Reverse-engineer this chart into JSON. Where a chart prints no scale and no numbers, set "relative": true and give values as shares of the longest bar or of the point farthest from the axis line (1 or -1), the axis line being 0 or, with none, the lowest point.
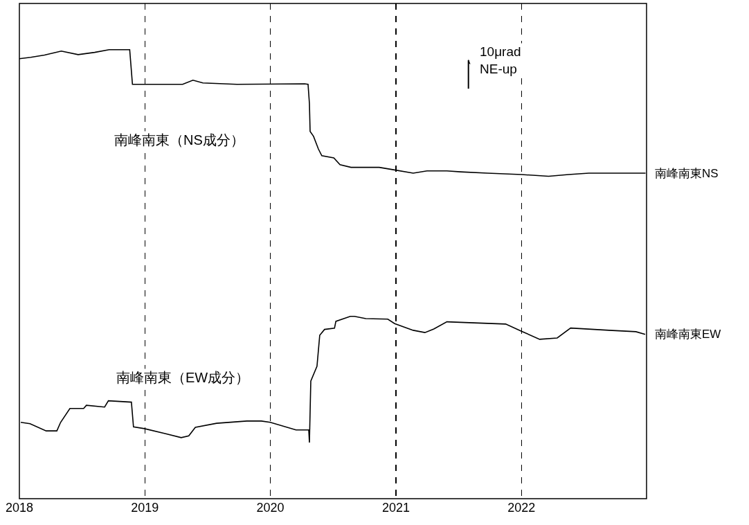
{
  "chart_data": {
    "type": "line",
    "relative": true,
    "grid": "x",
    "legend": false,
    "marker": "none",
    "line_style": "solid",
    "xlim": [
      "2018-01-01",
      "2022-12-31"
    ],
    "xticks": [
      {
        "value": "2018-01-01",
        "label": "2018"
      },
      {
        "value": "2019-01-01",
        "label": "2019"
      },
      {
        "value": "2020-01-01",
        "label": "2020"
      },
      {
        "value": "2021-01-01",
        "label": "2021"
      },
      {
        "value": "2022-01-01",
        "label": "2022"
      }
    ],
    "annotations": [
      "南峰南東（NS成分）",
      "南峰南東（EW成分）",
      "10μrad\nNE-up"
    ],
    "series": [
      {
        "name": "南峰南東NS",
        "color": "#000000",
        "x": [
          "2018-01-01",
          "2018-02-03",
          "2018-03-15",
          "2018-05-03",
          "2018-06-21",
          "2018-08-08",
          "2018-09-19",
          "2018-11-18",
          "2018-11-26",
          "2019-04-21",
          "2019-05-21",
          "2019-06-19",
          "2019-09-26",
          "2020-04-10",
          "2020-04-20",
          "2020-04-24",
          "2020-04-26",
          "2020-05-06",
          "2020-05-20",
          "2020-05-30",
          "2020-07-04",
          "2020-07-22",
          "2020-08-23",
          "2020-11-13",
          "2020-12-22",
          "2021-02-20",
          "2021-04-01",
          "2021-05-29",
          "2021-07-08",
          "2021-09-24",
          "2022-01-01",
          "2022-03-21",
          "2022-05-18",
          "2022-07-16",
          "2022-12-28"
        ],
        "values": [
          0.98,
          0.983,
          0.988,
          0.997,
          0.989,
          0.994,
          1.0,
          1.0,
          0.923,
          0.923,
          0.932,
          0.926,
          0.923,
          0.924,
          0.923,
          0.88,
          0.818,
          0.807,
          0.779,
          0.764,
          0.759,
          0.744,
          0.738,
          0.738,
          0.733,
          0.725,
          0.73,
          0.73,
          0.728,
          0.725,
          0.722,
          0.718,
          0.722,
          0.725,
          0.725
        ]
      },
      {
        "name": "南峰南東EW",
        "color": "#000000",
        "x": [
          "2018-01-05",
          "2018-02-01",
          "2018-03-20",
          "2018-04-20",
          "2018-05-01",
          "2018-05-28",
          "2018-07-07",
          "2018-07-15",
          "2018-09-06",
          "2018-09-17",
          "2018-11-23",
          "2018-11-29",
          "2018-12-31",
          "2019-03-01",
          "2019-04-17",
          "2019-05-09",
          "2019-05-28",
          "2019-07-29",
          "2019-10-25",
          "2019-12-06",
          "2020-01-01",
          "2020-03-16",
          "2020-04-22",
          "2020-04-24",
          "2020-04-28",
          "2020-05-16",
          "2020-05-24",
          "2020-06-07",
          "2020-07-06",
          "2020-07-10",
          "2020-08-21",
          "2020-09-02",
          "2020-10-05",
          "2020-12-08",
          "2020-12-28",
          "2021-02-20",
          "2021-03-26",
          "2021-04-21",
          "2021-05-29",
          "2021-08-02",
          "2021-11-16",
          "2022-01-01",
          "2022-02-23",
          "2022-04-15",
          "2022-05-24",
          "2022-09-13",
          "2022-11-30",
          "2022-12-27"
        ],
        "values": [
          0.17,
          0.167,
          0.151,
          0.151,
          0.17,
          0.201,
          0.201,
          0.208,
          0.204,
          0.218,
          0.215,
          0.16,
          0.156,
          0.145,
          0.136,
          0.14,
          0.159,
          0.168,
          0.173,
          0.173,
          0.17,
          0.153,
          0.153,
          0.125,
          0.262,
          0.295,
          0.364,
          0.377,
          0.38,
          0.395,
          0.406,
          0.406,
          0.401,
          0.4,
          0.39,
          0.375,
          0.37,
          0.378,
          0.394,
          0.392,
          0.389,
          0.373,
          0.355,
          0.358,
          0.38,
          0.375,
          0.372,
          0.366
        ]
      }
    ]
  }
}
